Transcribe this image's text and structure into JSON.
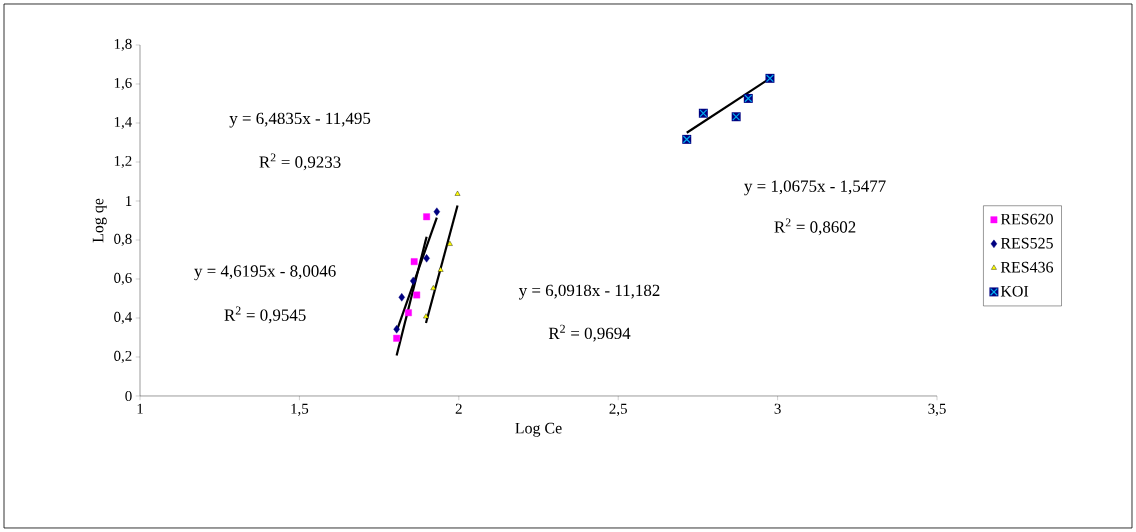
{
  "chart_data": {
    "type": "scatter",
    "xlabel": "Log Ce",
    "ylabel": "Log qe",
    "xlim": [
      1,
      3.5
    ],
    "ylim": [
      0,
      1.8
    ],
    "xticks": [
      1,
      {
        "value": 1.5,
        "label": "1,5"
      },
      2,
      {
        "value": 2.5,
        "label": "2,5"
      },
      3,
      {
        "value": 3.5,
        "label": "3,5"
      }
    ],
    "yticks": [
      0,
      {
        "value": 0.2,
        "label": "0,2"
      },
      {
        "value": 0.4,
        "label": "0,4"
      },
      {
        "value": 0.6,
        "label": "0,6"
      },
      {
        "value": 0.8,
        "label": "0,8"
      },
      1,
      {
        "value": 1.2,
        "label": "1,2"
      },
      {
        "value": 1.4,
        "label": "1,4"
      },
      {
        "value": 1.6,
        "label": "1,6"
      },
      {
        "value": 1.8,
        "label": "1,8"
      }
    ],
    "grid": false,
    "legend": "right",
    "series": [
      {
        "name": "RES620",
        "color": "#ff00ff",
        "marker": "square",
        "x": [
          1.805,
          1.842,
          1.868,
          1.86,
          1.899
        ],
        "values": [
          0.296,
          0.427,
          0.518,
          0.689,
          0.919
        ]
      },
      {
        "name": "RES525",
        "color": "#000080",
        "marker": "diamond",
        "x": [
          1.805,
          1.821,
          1.857,
          1.899,
          1.931
        ],
        "values": [
          0.342,
          0.506,
          0.59,
          0.706,
          0.945
        ]
      },
      {
        "name": "RES436",
        "color": "#ffff00",
        "marker": "triangle",
        "x": [
          1.897,
          1.92,
          1.943,
          1.972,
          1.996
        ],
        "values": [
          0.407,
          0.552,
          0.646,
          0.779,
          1.036
        ]
      },
      {
        "name": "KOI",
        "color": "#000080",
        "marker": "square",
        "x": [
          2.715,
          2.767,
          2.87,
          2.908,
          2.976
        ],
        "values": [
          1.316,
          1.45,
          1.432,
          1.526,
          1.629
        ]
      },
      {
        "type": "line",
        "color": "#000000",
        "marker": "none",
        "x": [
          1.805,
          1.899
        ],
        "values": [
          0.208,
          0.817
        ]
      },
      {
        "type": "line",
        "color": "#000000",
        "marker": "none",
        "x": [
          1.805,
          1.931
        ],
        "values": [
          0.333,
          0.915
        ]
      },
      {
        "type": "line",
        "color": "#000000",
        "marker": "none",
        "x": [
          1.897,
          1.996
        ],
        "values": [
          0.374,
          0.977
        ]
      },
      {
        "type": "line",
        "color": "#000000",
        "x": [
          2.715,
          2.976
        ],
        "values": [
          1.35,
          1.629
        ]
      }
    ],
    "annotations": [
      "y = 6,4835x - 11,495",
      "R$^{2}$ = 0,9233",
      "y = 4,6195x - 8,0046",
      "R$^{2}$ = 0,9545",
      "y = 6,0918x - 11,182",
      "R$^{2}$ = 0,9694",
      "y = 1,0675x - 1,5477",
      "R$^{2}$ = 0,8602"
    ]
  }
}
